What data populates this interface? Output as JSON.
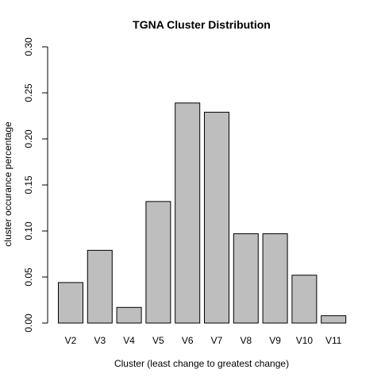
{
  "chart_data": {
    "type": "bar",
    "title": "TGNA Cluster Distribution",
    "xlabel": "Cluster (least change to greatest change)",
    "ylabel": "cluster occurance percentage",
    "categories": [
      "V2",
      "V3",
      "V4",
      "V5",
      "V6",
      "V7",
      "V8",
      "V9",
      "V10",
      "V11"
    ],
    "values": [
      0.044,
      0.079,
      0.017,
      0.132,
      0.239,
      0.229,
      0.097,
      0.097,
      0.052,
      0.008
    ],
    "ylim": [
      0,
      0.3
    ],
    "yticks": [
      "0.00",
      "0.05",
      "0.10",
      "0.15",
      "0.20",
      "0.25",
      "0.30"
    ],
    "grid": false,
    "bar_color": "#bebebe",
    "bar_edge_color": "#000000"
  }
}
